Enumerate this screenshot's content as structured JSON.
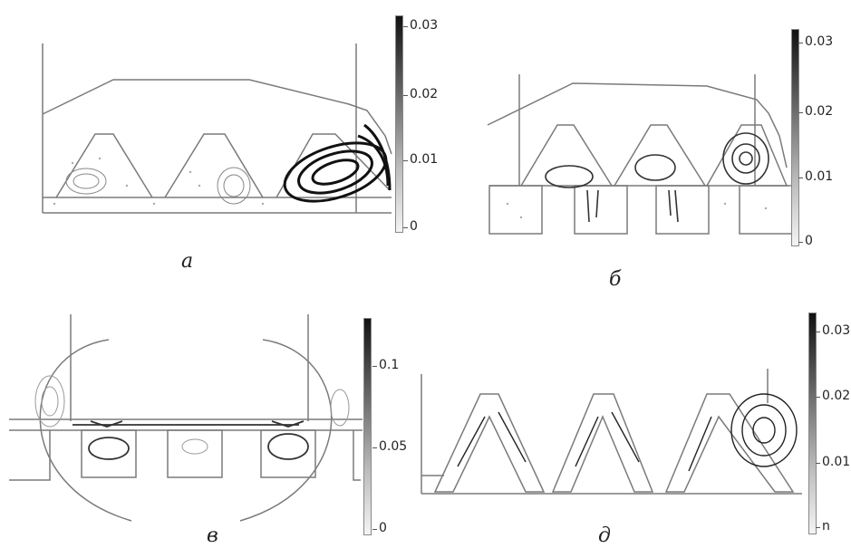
{
  "panels": [
    {
      "id": "a",
      "label": "а",
      "colorbar": {
        "ticks": [
          "0.03",
          "0.02",
          "0.01",
          "0"
        ]
      }
    },
    {
      "id": "b",
      "label": "б",
      "colorbar": {
        "ticks": [
          "0.03",
          "0.02",
          "0.01",
          "0"
        ]
      }
    },
    {
      "id": "v",
      "label": "в",
      "colorbar": {
        "ticks": [
          "0.1",
          "0.05",
          "0"
        ]
      }
    },
    {
      "id": "d",
      "label": "д",
      "colorbar": {
        "ticks": [
          "0.03",
          "0.02",
          "0.01",
          "n"
        ]
      }
    }
  ],
  "colors": {
    "stroke": "#7a7a7a",
    "arrow": "#222222",
    "dark_vortex": "#111111"
  }
}
